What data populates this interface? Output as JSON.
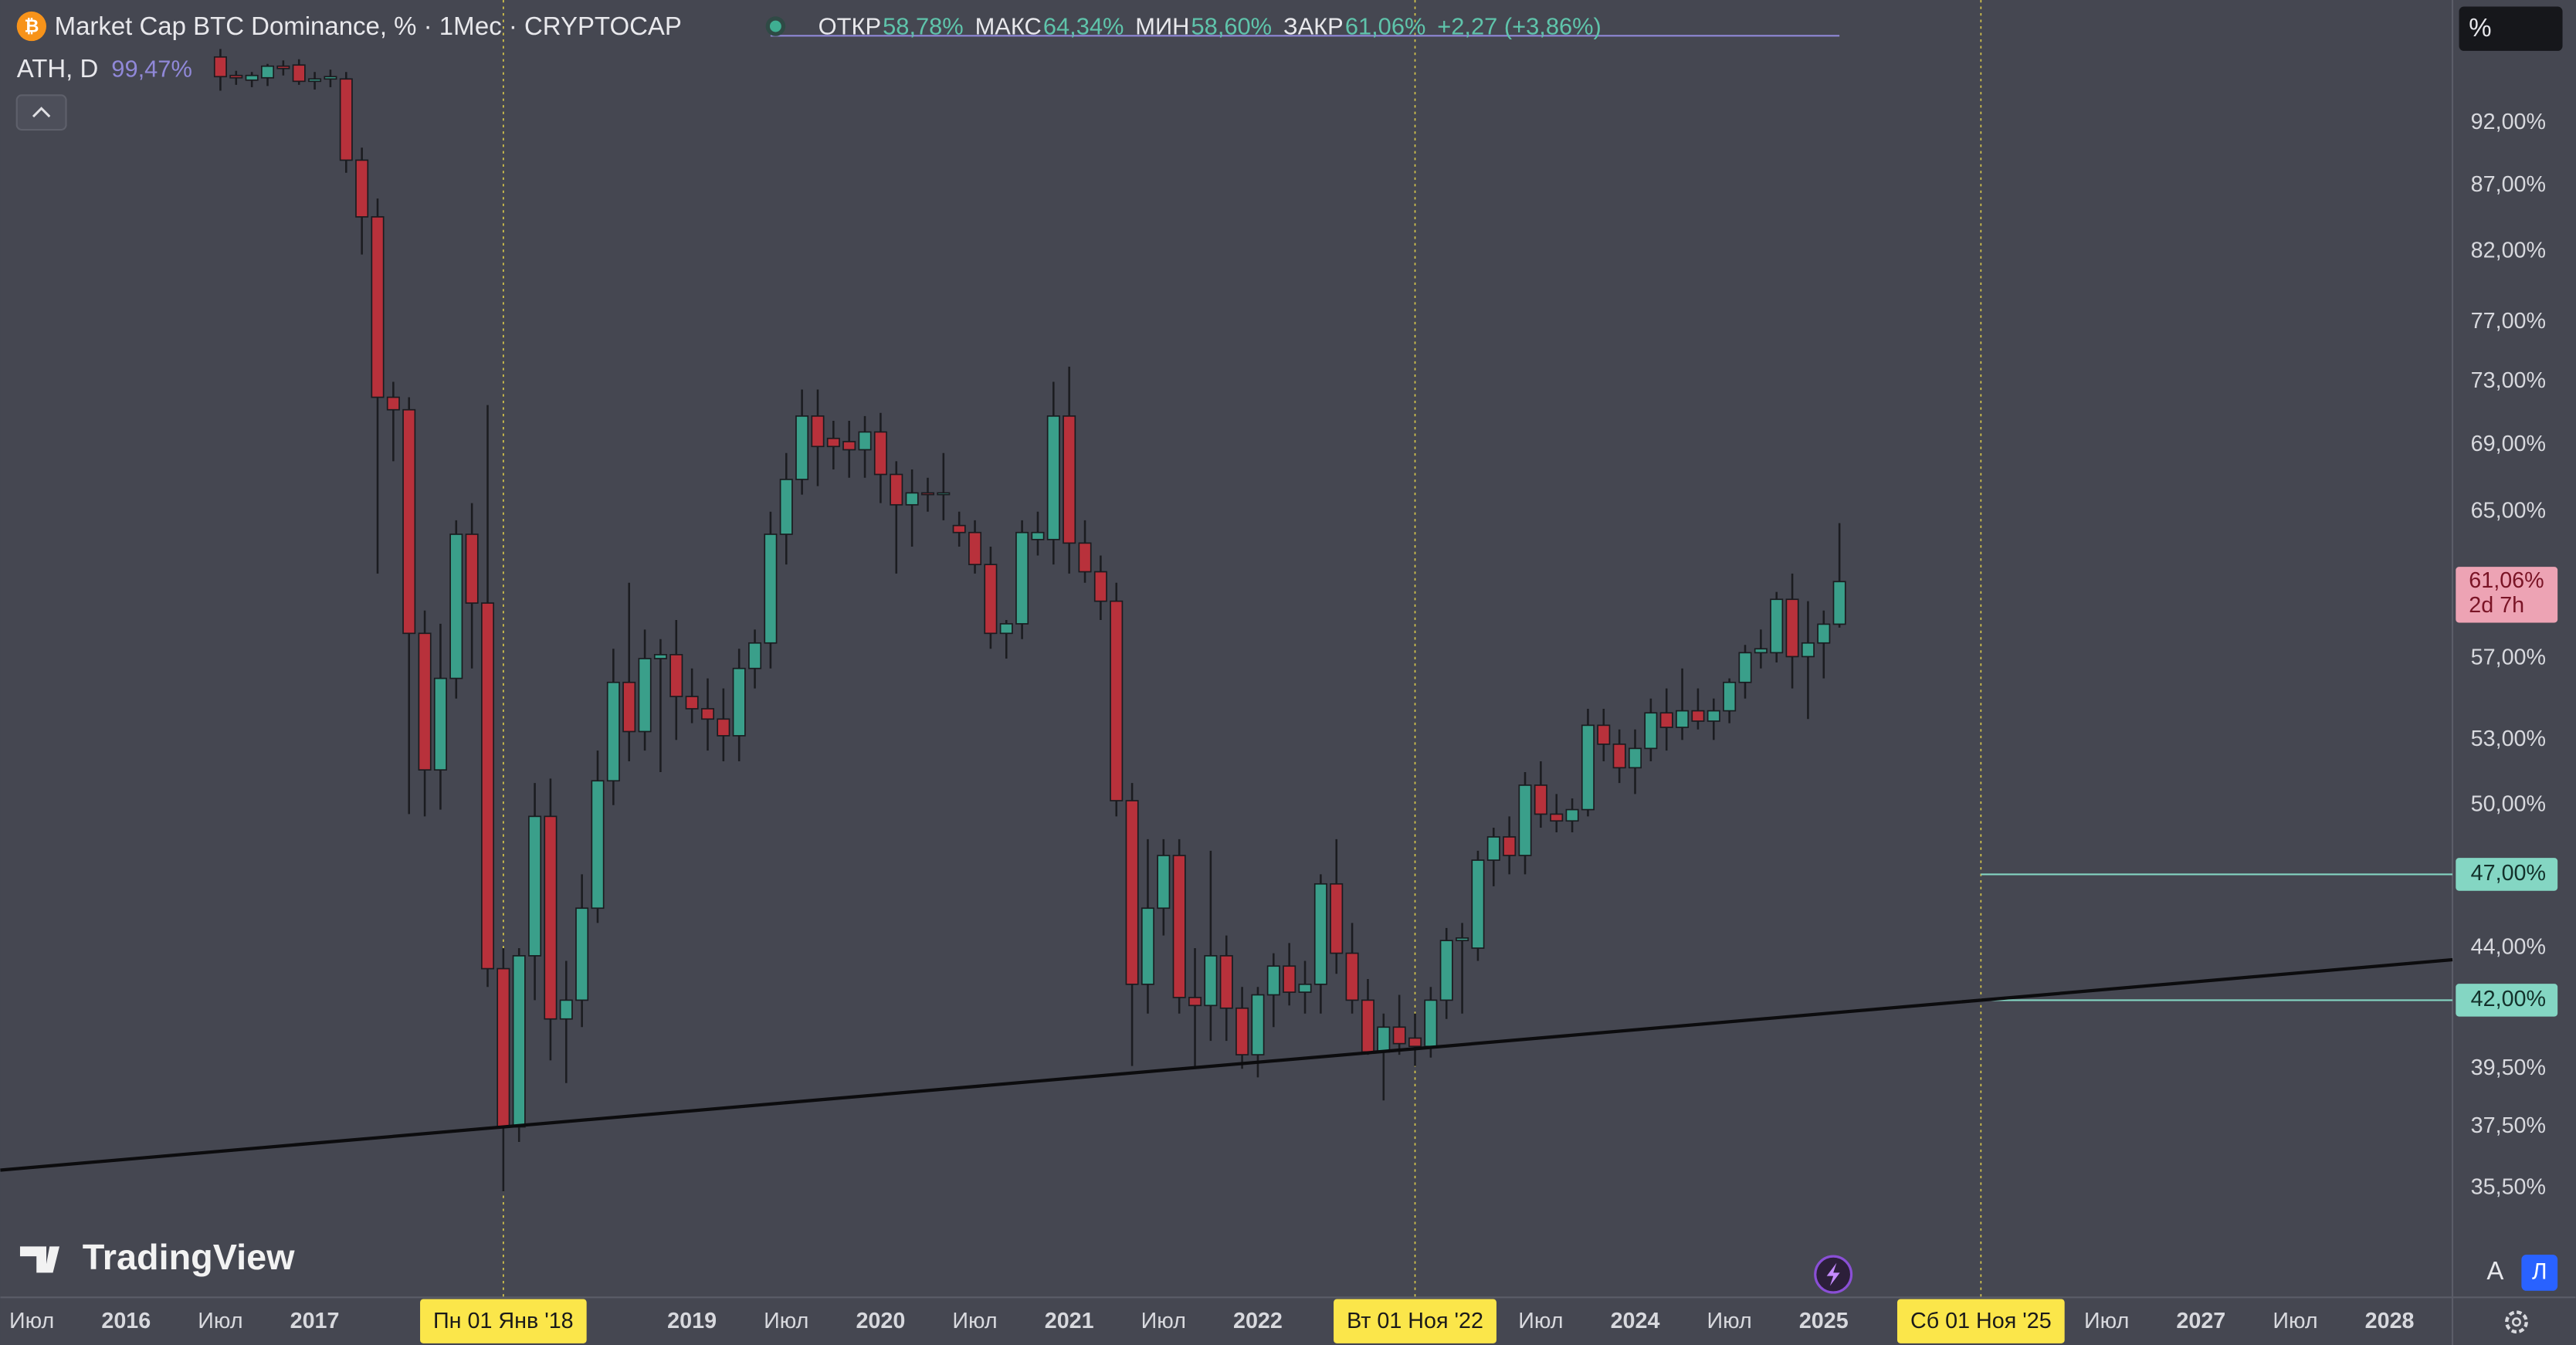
{
  "chart_data": {
    "type": "candlestick",
    "title": "Market Cap BTC Dominance, % · 1Мес · CRYPTOCAP",
    "header": {
      "open_label": "ОТКР",
      "open": "58,78%",
      "high_label": "МАКС",
      "high": "64,34%",
      "low_label": "МИН",
      "low": "58,60%",
      "close_label": "ЗАКР",
      "close": "61,06%",
      "change": "+2,27 (+3,86%)"
    },
    "indicator": {
      "label": "ATH, D",
      "value": 99.47,
      "value_label": "99,47%",
      "color": "#9088d8",
      "from": "2019-06",
      "to": "2025-02"
    },
    "scale_label": "%",
    "watermark": "TradingView",
    "buttons": [
      "A",
      "Л"
    ],
    "log_scale": true,
    "up_color": "#3a9f8a",
    "down_color": "#b8313b",
    "wick_color": "#1b1c20",
    "x": [
      "2016-07",
      "2016-08",
      "2016-09",
      "2016-10",
      "2016-11",
      "2016-12",
      "2017-01",
      "2017-02",
      "2017-03",
      "2017-04",
      "2017-05",
      "2017-06",
      "2017-07",
      "2017-08",
      "2017-09",
      "2017-10",
      "2017-11",
      "2017-12",
      "2018-01",
      "2018-02",
      "2018-03",
      "2018-04",
      "2018-05",
      "2018-06",
      "2018-07",
      "2018-08",
      "2018-09",
      "2018-10",
      "2018-11",
      "2018-12",
      "2019-01",
      "2019-02",
      "2019-03",
      "2019-04",
      "2019-05",
      "2019-06",
      "2019-07",
      "2019-08",
      "2019-09",
      "2019-10",
      "2019-11",
      "2019-12",
      "2020-01",
      "2020-02",
      "2020-03",
      "2020-04",
      "2020-05",
      "2020-06",
      "2020-07",
      "2020-08",
      "2020-09",
      "2020-10",
      "2020-11",
      "2020-12",
      "2021-01",
      "2021-02",
      "2021-03",
      "2021-04",
      "2021-05",
      "2021-06",
      "2021-07",
      "2021-08",
      "2021-09",
      "2021-10",
      "2021-11",
      "2021-12",
      "2022-01",
      "2022-02",
      "2022-03",
      "2022-04",
      "2022-05",
      "2022-06",
      "2022-07",
      "2022-08",
      "2022-09",
      "2022-10",
      "2022-11",
      "2022-12",
      "2023-01",
      "2023-02",
      "2023-03",
      "2023-04",
      "2023-05",
      "2023-06",
      "2023-07",
      "2023-08",
      "2023-09",
      "2023-10",
      "2023-11",
      "2023-12",
      "2024-01",
      "2024-02",
      "2024-03",
      "2024-04",
      "2024-05",
      "2024-06",
      "2024-07",
      "2024-08",
      "2024-09",
      "2024-10",
      "2024-11",
      "2024-12",
      "2025-01",
      "2025-02"
    ],
    "open": [
      97.6,
      96.0,
      95.6,
      95.8,
      96.8,
      96.9,
      95.5,
      95.7,
      95.7,
      89.0,
      84.6,
      72.0,
      71.2,
      58.3,
      51.6,
      56.0,
      63.7,
      59.9,
      43.2,
      37.5,
      43.7,
      49.5,
      41.3,
      42.0,
      45.6,
      51.1,
      55.8,
      53.4,
      57.0,
      57.2,
      55.1,
      54.5,
      54.0,
      53.2,
      56.5,
      57.8,
      63.7,
      66.9,
      70.8,
      69.4,
      69.2,
      68.7,
      69.8,
      67.2,
      65.4,
      66.1,
      66.0,
      64.2,
      63.8,
      62.0,
      58.3,
      58.8,
      63.4,
      63.4,
      70.8,
      63.2,
      61.6,
      60.0,
      50.2,
      42.6,
      45.6,
      47.8,
      42.1,
      41.8,
      43.7,
      41.7,
      40.0,
      42.2,
      43.3,
      42.3,
      42.6,
      46.6,
      43.8,
      42.0,
      40.1,
      41.0,
      40.6,
      40.3,
      42.0,
      44.3,
      44.0,
      47.6,
      48.6,
      47.8,
      50.9,
      49.6,
      49.3,
      49.8,
      53.7,
      52.8,
      51.7,
      52.6,
      54.3,
      53.6,
      54.4,
      53.9,
      54.4,
      55.8,
      57.3,
      57.3,
      60.1,
      57.1,
      57.8,
      58.78
    ],
    "high": [
      98.3,
      96.4,
      96.3,
      97.0,
      97.3,
      97.4,
      96.3,
      96.5,
      96.3,
      90.0,
      86.0,
      73.0,
      72.0,
      59.5,
      58.8,
      64.5,
      65.5,
      71.5,
      44.0,
      44.0,
      51.0,
      51.2,
      43.5,
      47.0,
      52.5,
      57.5,
      61.0,
      58.5,
      58.0,
      59.0,
      56.5,
      56.0,
      55.5,
      57.5,
      58.5,
      65.0,
      68.5,
      72.5,
      72.5,
      70.5,
      70.5,
      70.8,
      71.0,
      68.0,
      67.5,
      67.0,
      68.5,
      65.0,
      64.5,
      63.0,
      59.0,
      64.5,
      65.0,
      73.0,
      74.0,
      64.5,
      62.5,
      61.0,
      51.0,
      48.5,
      48.5,
      48.5,
      44.0,
      48.0,
      44.5,
      42.5,
      42.5,
      43.8,
      44.2,
      43.5,
      47.0,
      48.5,
      45.0,
      42.8,
      41.5,
      42.2,
      41.5,
      42.5,
      44.8,
      45.0,
      48.0,
      49.0,
      49.5,
      51.5,
      52.0,
      50.5,
      50.3,
      54.5,
      54.5,
      53.5,
      53.5,
      55.0,
      55.5,
      56.5,
      55.5,
      55.0,
      56.0,
      57.7,
      58.5,
      60.5,
      61.5,
      60.0,
      59.5,
      64.34
    ],
    "low": [
      94.7,
      95.2,
      95.0,
      95.1,
      96.0,
      95.2,
      94.8,
      95.0,
      88.0,
      81.8,
      61.5,
      68.0,
      49.6,
      49.5,
      49.8,
      55.0,
      56.5,
      42.5,
      35.4,
      37.0,
      42.0,
      39.8,
      39.0,
      41.0,
      45.0,
      50.0,
      52.0,
      52.5,
      51.5,
      53.0,
      53.8,
      52.5,
      52.0,
      52.0,
      55.5,
      56.5,
      62.0,
      66.0,
      66.5,
      67.5,
      67.0,
      67.0,
      65.5,
      61.5,
      63.0,
      65.0,
      64.5,
      63.0,
      61.5,
      57.5,
      57.0,
      58.0,
      62.5,
      62.0,
      61.5,
      61.0,
      59.0,
      49.5,
      39.6,
      41.5,
      44.5,
      41.5,
      39.5,
      40.5,
      40.5,
      39.5,
      39.2,
      41.0,
      41.8,
      41.5,
      41.5,
      43.0,
      41.5,
      40.0,
      38.4,
      40.0,
      39.6,
      39.9,
      41.3,
      41.5,
      43.5,
      46.5,
      47.0,
      47.0,
      49.0,
      48.8,
      48.8,
      49.5,
      52.0,
      51.0,
      50.5,
      52.0,
      52.5,
      53.0,
      53.5,
      53.0,
      53.8,
      55.0,
      56.5,
      56.8,
      55.5,
      54.0,
      56.0,
      58.6
    ],
    "close": [
      95.9,
      95.8,
      96.0,
      96.8,
      96.6,
      95.5,
      95.7,
      95.9,
      89.0,
      84.6,
      72.0,
      71.2,
      58.3,
      51.6,
      56.0,
      63.7,
      59.9,
      43.2,
      37.5,
      43.7,
      49.5,
      41.3,
      42.0,
      45.6,
      51.1,
      55.8,
      53.4,
      57.0,
      57.2,
      55.1,
      54.5,
      54.0,
      53.2,
      56.5,
      57.8,
      63.7,
      66.9,
      70.8,
      68.9,
      68.9,
      68.7,
      69.8,
      67.2,
      65.4,
      66.1,
      66.0,
      66.1,
      63.8,
      62.0,
      58.3,
      58.8,
      63.8,
      63.8,
      70.8,
      63.2,
      61.6,
      60.0,
      50.2,
      42.6,
      45.6,
      47.8,
      42.1,
      41.8,
      43.7,
      41.7,
      40.0,
      42.2,
      43.3,
      42.3,
      42.6,
      46.6,
      43.8,
      42.0,
      40.1,
      41.0,
      40.4,
      40.3,
      42.0,
      44.3,
      44.4,
      47.6,
      48.6,
      47.8,
      50.9,
      49.6,
      49.3,
      49.8,
      53.7,
      52.8,
      51.7,
      52.6,
      54.3,
      53.6,
      54.4,
      53.9,
      54.4,
      55.8,
      57.3,
      57.5,
      60.1,
      57.1,
      57.8,
      58.78,
      61.06
    ],
    "last_label": "61,06%",
    "last_countdown": "2d 7h",
    "last_color": "#eda3b4",
    "ylim": [
      32.2,
      102.7
    ],
    "yticks": [
      {
        "value": 92,
        "label": "92,00%"
      },
      {
        "value": 87,
        "label": "87,00%"
      },
      {
        "value": 82,
        "label": "82,00%"
      },
      {
        "value": 77,
        "label": "77,00%"
      },
      {
        "value": 73,
        "label": "73,00%"
      },
      {
        "value": 69,
        "label": "69,00%"
      },
      {
        "value": 65,
        "label": "65,00%"
      },
      {
        "value": 57,
        "label": "57,00%"
      },
      {
        "value": 53,
        "label": "53,00%"
      },
      {
        "value": 50,
        "label": "50,00%"
      },
      {
        "value": 44,
        "label": "44,00%"
      },
      {
        "value": 39.5,
        "label": "39,50%"
      },
      {
        "value": 37.5,
        "label": "37,50%"
      },
      {
        "value": 35.5,
        "label": "35,50%"
      }
    ],
    "xlim": [
      "2015-05",
      "2028-05"
    ],
    "xticks": [
      {
        "value": "2015-07",
        "label": "Июл"
      },
      {
        "value": "2016-01",
        "label": "2016"
      },
      {
        "value": "2016-07",
        "label": "Июл"
      },
      {
        "value": "2017-01",
        "label": "2017"
      },
      {
        "value": "2019-01",
        "label": "2019"
      },
      {
        "value": "2019-07",
        "label": "Июл"
      },
      {
        "value": "2020-01",
        "label": "2020"
      },
      {
        "value": "2020-07",
        "label": "Июл"
      },
      {
        "value": "2021-01",
        "label": "2021"
      },
      {
        "value": "2021-07",
        "label": "Июл"
      },
      {
        "value": "2022-01",
        "label": "2022"
      },
      {
        "value": "2023-07",
        "label": "Июл"
      },
      {
        "value": "2024-01",
        "label": "2024"
      },
      {
        "value": "2024-07",
        "label": "Июл"
      },
      {
        "value": "2025-01",
        "label": "2025"
      },
      {
        "value": "2026-07",
        "label": "Июл"
      },
      {
        "value": "2027-01",
        "label": "2027"
      },
      {
        "value": "2027-07",
        "label": "Июл"
      },
      {
        "value": "2028-01",
        "label": "2028"
      }
    ],
    "markers": [
      {
        "x": "2018-01",
        "label": "Пн 01 Янв '18"
      },
      {
        "x": "2022-11",
        "label": "Вт 01 Ноя '22"
      },
      {
        "x": "2025-11",
        "label": "Сб 01 Ноя '25"
      }
    ],
    "marker_color": "#fbe64a",
    "hlines": [
      {
        "value": 47,
        "label": "47,00%",
        "from": "2025-11"
      },
      {
        "value": 42,
        "label": "42,00%",
        "from": "2025-11"
      }
    ],
    "hline_color": "#84d6c3",
    "trendline": {
      "points": [
        {
          "x": "2018-01",
          "value": 37.5
        },
        {
          "x": "2025-11",
          "value": 42
        }
      ],
      "color": "#0c0c0e"
    }
  }
}
